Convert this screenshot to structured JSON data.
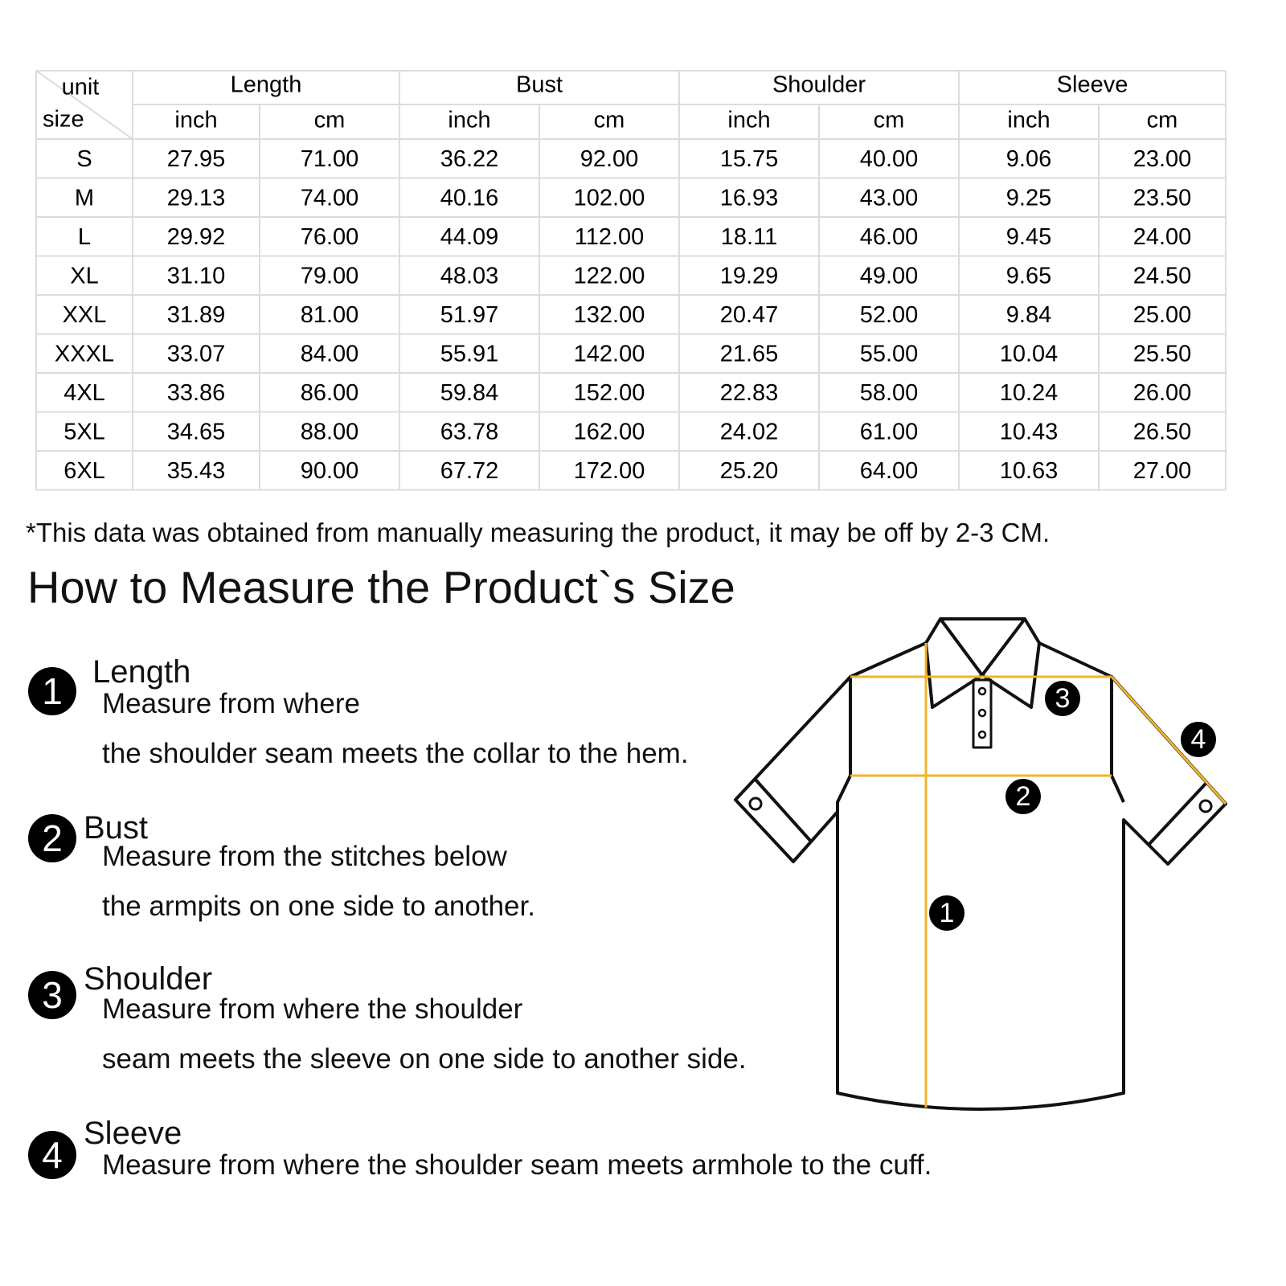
{
  "table": {
    "corner": {
      "unit": "unit",
      "size": "size"
    },
    "groups": [
      "Length",
      "Bust",
      "Shoulder",
      "Sleeve"
    ],
    "units": [
      "inch",
      "cm",
      "inch",
      "cm",
      "inch",
      "cm",
      "inch",
      "cm"
    ],
    "rows": [
      [
        "S",
        "27.95",
        "71.00",
        "36.22",
        "92.00",
        "15.75",
        "40.00",
        "9.06",
        "23.00"
      ],
      [
        "M",
        "29.13",
        "74.00",
        "40.16",
        "102.00",
        "16.93",
        "43.00",
        "9.25",
        "23.50"
      ],
      [
        "L",
        "29.92",
        "76.00",
        "44.09",
        "112.00",
        "18.11",
        "46.00",
        "9.45",
        "24.00"
      ],
      [
        "XL",
        "31.10",
        "79.00",
        "48.03",
        "122.00",
        "19.29",
        "49.00",
        "9.65",
        "24.50"
      ],
      [
        "XXL",
        "31.89",
        "81.00",
        "51.97",
        "132.00",
        "20.47",
        "52.00",
        "9.84",
        "25.00"
      ],
      [
        "XXXL",
        "33.07",
        "84.00",
        "55.91",
        "142.00",
        "21.65",
        "55.00",
        "10.04",
        "25.50"
      ],
      [
        "4XL",
        "33.86",
        "86.00",
        "59.84",
        "152.00",
        "22.83",
        "58.00",
        "10.24",
        "26.00"
      ],
      [
        "5XL",
        "34.65",
        "88.00",
        "63.78",
        "162.00",
        "24.02",
        "61.00",
        "10.43",
        "26.50"
      ],
      [
        "6XL",
        "35.43",
        "90.00",
        "67.72",
        "172.00",
        "25.20",
        "64.00",
        "10.63",
        "27.00"
      ]
    ]
  },
  "note": "*This data was obtained from manually measuring the product, it may be off by 2-3 CM.",
  "heading": "How to Measure the Product`s Size",
  "steps": [
    {
      "number": "1",
      "title": "Length",
      "lines": [
        "Measure from where",
        "the shoulder seam meets the collar to the hem."
      ]
    },
    {
      "number": "2",
      "title": "Bust",
      "lines": [
        "Measure from the stitches below",
        "the armpits on one side to another."
      ]
    },
    {
      "number": "3",
      "title": "Shoulder",
      "lines": [
        "Measure from where the shoulder",
        "seam meets the sleeve on one side to another side."
      ]
    },
    {
      "number": "4",
      "title": "Sleeve",
      "lines": [
        "Measure from where the shoulder seam meets armhole to the cuff."
      ]
    }
  ],
  "diagram": {
    "markers": [
      "1",
      "2",
      "3",
      "4"
    ]
  }
}
